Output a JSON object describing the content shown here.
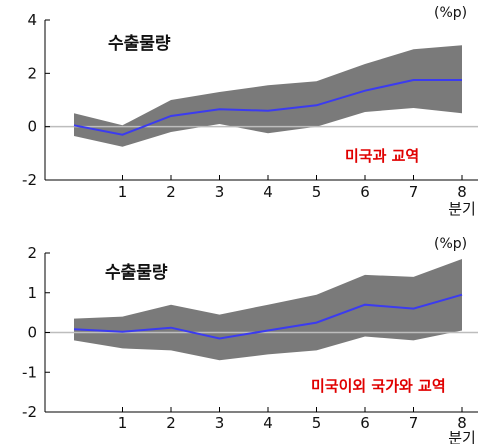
{
  "chart_data": [
    {
      "type": "area",
      "title": "수출물량",
      "unit_label": "(%p)",
      "annotation": "미국과 교역",
      "xlabel": "분기",
      "x": [
        0,
        1,
        2,
        3,
        4,
        5,
        6,
        7,
        8
      ],
      "x_tick_labels": [
        "1",
        "2",
        "3",
        "4",
        "5",
        "6",
        "7",
        "8"
      ],
      "ylim": [
        -2,
        4
      ],
      "y_ticks": [
        -2,
        0,
        2,
        4
      ],
      "series": [
        {
          "values": [
            0.05,
            -0.3,
            0.4,
            0.65,
            0.6,
            0.8,
            1.35,
            1.75,
            1.75
          ]
        },
        {
          "values": [
            -0.35,
            -0.75,
            -0.2,
            0.1,
            -0.25,
            0.0,
            0.55,
            0.7,
            0.5
          ]
        },
        {
          "values": [
            0.5,
            0.05,
            1.0,
            1.3,
            1.55,
            1.7,
            2.35,
            2.9,
            3.05
          ]
        }
      ],
      "colors": {
        "line": "#3b3bf0",
        "band": "#7a7a7a",
        "zero": "#bdbdbd"
      }
    },
    {
      "type": "area",
      "title": "수출물량",
      "unit_label": "(%p)",
      "annotation": "미국이외 국가와 교역",
      "xlabel": "분기",
      "x": [
        0,
        1,
        2,
        3,
        4,
        5,
        6,
        7,
        8
      ],
      "x_tick_labels": [
        "1",
        "2",
        "3",
        "4",
        "5",
        "6",
        "7",
        "8"
      ],
      "ylim": [
        -2,
        2
      ],
      "y_ticks": [
        -2,
        -1,
        0,
        1,
        2
      ],
      "series": [
        {
          "values": [
            0.08,
            0.02,
            0.12,
            -0.15,
            0.05,
            0.25,
            0.7,
            0.6,
            0.95
          ]
        },
        {
          "values": [
            -0.2,
            -0.4,
            -0.45,
            -0.7,
            -0.55,
            -0.45,
            -0.1,
            -0.2,
            0.05
          ]
        },
        {
          "values": [
            0.35,
            0.4,
            0.7,
            0.45,
            0.7,
            0.95,
            1.45,
            1.4,
            1.85
          ]
        }
      ],
      "colors": {
        "line": "#3b3bf0",
        "band": "#7a7a7a",
        "zero": "#bdbdbd"
      }
    }
  ]
}
